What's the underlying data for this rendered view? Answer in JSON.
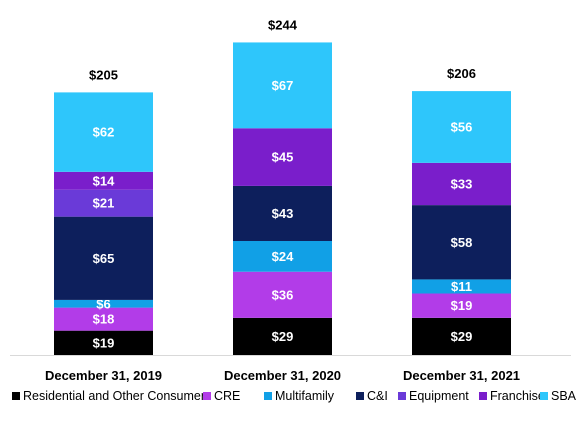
{
  "chart_data": {
    "type": "bar",
    "stacked": true,
    "categories": [
      "December 31, 2019",
      "December 31, 2020",
      "December 31, 2021"
    ],
    "totals": [
      205,
      244,
      206
    ],
    "totals_text": [
      "$205",
      "$244",
      "$206"
    ],
    "series": [
      {
        "name": "Residential and Other Consumer",
        "color": "#000000",
        "values": [
          19,
          29,
          29
        ],
        "labels": [
          "$19",
          "$29",
          "$29"
        ]
      },
      {
        "name": "CRE",
        "color": "#b23ce8",
        "values": [
          18,
          36,
          19
        ],
        "labels": [
          "$18",
          "$36",
          "$19"
        ]
      },
      {
        "name": "Multifamily",
        "color": "#11a0e6",
        "values": [
          6,
          24,
          11
        ],
        "labels": [
          "$6",
          "$24",
          "$11"
        ]
      },
      {
        "name": "C&I",
        "color": "#0d1f5c",
        "values": [
          65,
          43,
          58
        ],
        "labels": [
          "$65",
          "$43",
          "$58"
        ]
      },
      {
        "name": "Equipment",
        "color": "#6a3ad8",
        "values": [
          21,
          0,
          0
        ],
        "labels": [
          "$21",
          "",
          ""
        ]
      },
      {
        "name": "Franchise",
        "color": "#7a1ecb",
        "values": [
          14,
          45,
          33
        ],
        "labels": [
          "$14",
          "$45",
          "$33"
        ]
      },
      {
        "name": "SBA",
        "color": "#2ec6fb",
        "values": [
          62,
          67,
          56
        ],
        "labels": [
          "$62",
          "$67",
          "$56"
        ]
      }
    ],
    "legend_position": "bottom",
    "grid": false
  }
}
